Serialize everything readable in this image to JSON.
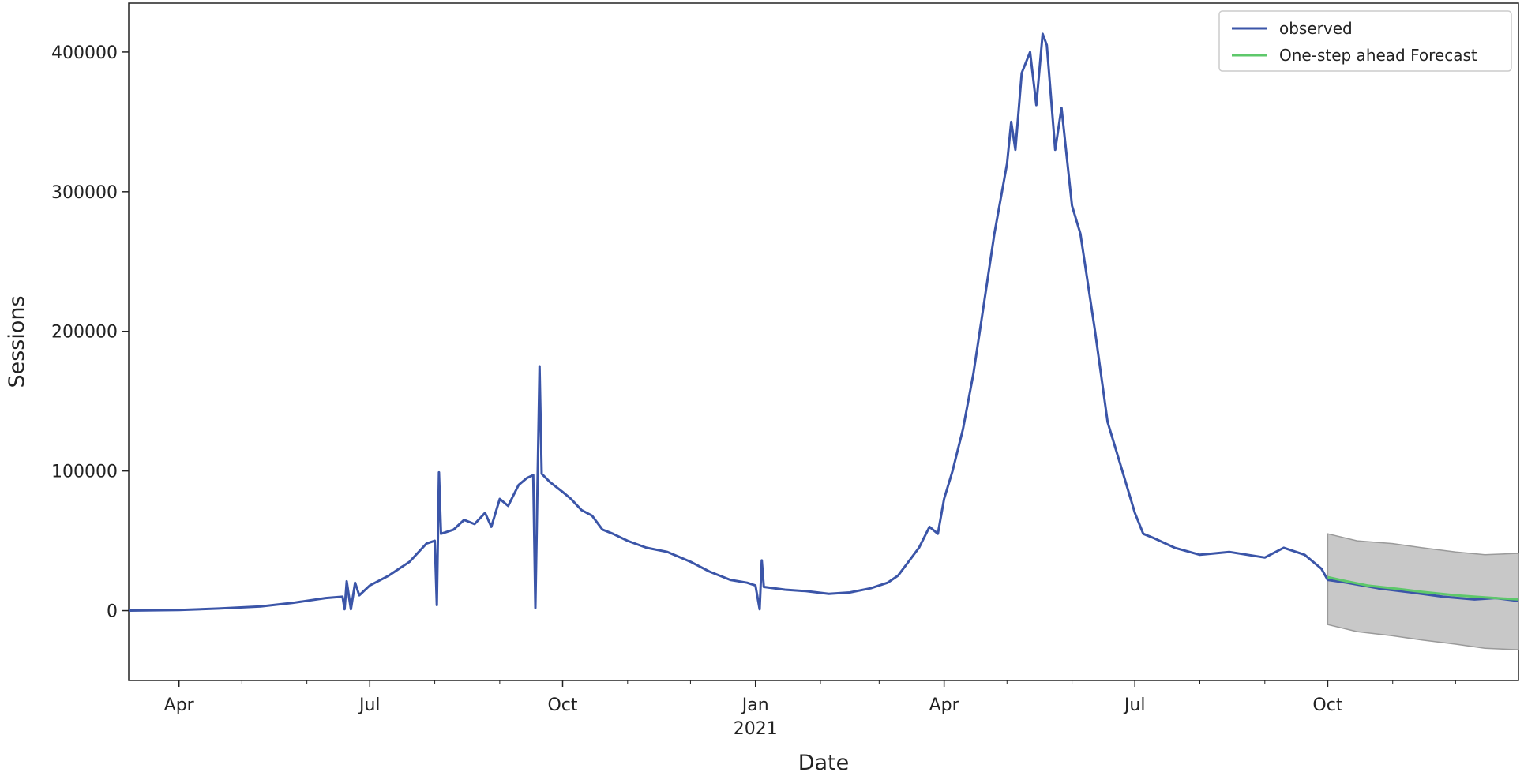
{
  "chart_data": {
    "type": "line",
    "title": "",
    "xlabel": "Date",
    "ylabel": "Sessions",
    "xlim": [
      "2020-03-08",
      "2021-12-31"
    ],
    "ylim": [
      -50000,
      435000
    ],
    "grid": false,
    "legend_position": "top-right",
    "x_ticks": [
      {
        "date": "2020-04-01",
        "label": "Apr"
      },
      {
        "date": "2020-07-01",
        "label": "Jul"
      },
      {
        "date": "2020-10-01",
        "label": "Oct"
      },
      {
        "date": "2021-01-01",
        "label": "Jan",
        "sublabel": "2021"
      },
      {
        "date": "2021-04-01",
        "label": "Apr"
      },
      {
        "date": "2021-07-01",
        "label": "Jul"
      },
      {
        "date": "2021-10-01",
        "label": "Oct"
      }
    ],
    "y_ticks": [
      0,
      100000,
      200000,
      300000,
      400000
    ],
    "series": [
      {
        "name": "observed",
        "color": "#3b55a8",
        "points": [
          [
            "2020-03-08",
            0
          ],
          [
            "2020-04-01",
            500
          ],
          [
            "2020-04-20",
            1500
          ],
          [
            "2020-05-10",
            3000
          ],
          [
            "2020-05-25",
            5500
          ],
          [
            "2020-06-10",
            9000
          ],
          [
            "2020-06-18",
            10000
          ],
          [
            "2020-06-19",
            1000
          ],
          [
            "2020-06-20",
            21000
          ],
          [
            "2020-06-21",
            11000
          ],
          [
            "2020-06-22",
            1000
          ],
          [
            "2020-06-24",
            20000
          ],
          [
            "2020-06-26",
            11000
          ],
          [
            "2020-07-01",
            18000
          ],
          [
            "2020-07-10",
            25000
          ],
          [
            "2020-07-20",
            35000
          ],
          [
            "2020-07-28",
            48000
          ],
          [
            "2020-08-01",
            50000
          ],
          [
            "2020-08-02",
            4000
          ],
          [
            "2020-08-03",
            99000
          ],
          [
            "2020-08-04",
            55000
          ],
          [
            "2020-08-10",
            58000
          ],
          [
            "2020-08-15",
            65000
          ],
          [
            "2020-08-20",
            62000
          ],
          [
            "2020-08-25",
            70000
          ],
          [
            "2020-08-28",
            60000
          ],
          [
            "2020-09-01",
            80000
          ],
          [
            "2020-09-05",
            75000
          ],
          [
            "2020-09-10",
            90000
          ],
          [
            "2020-09-14",
            95000
          ],
          [
            "2020-09-17",
            97000
          ],
          [
            "2020-09-18",
            2000
          ],
          [
            "2020-09-20",
            175000
          ],
          [
            "2020-09-21",
            98000
          ],
          [
            "2020-09-25",
            92000
          ],
          [
            "2020-10-01",
            85000
          ],
          [
            "2020-10-05",
            80000
          ],
          [
            "2020-10-10",
            72000
          ],
          [
            "2020-10-15",
            68000
          ],
          [
            "2020-10-20",
            58000
          ],
          [
            "2020-10-25",
            55000
          ],
          [
            "2020-11-01",
            50000
          ],
          [
            "2020-11-10",
            45000
          ],
          [
            "2020-11-20",
            42000
          ],
          [
            "2020-12-01",
            35000
          ],
          [
            "2020-12-10",
            28000
          ],
          [
            "2020-12-20",
            22000
          ],
          [
            "2020-12-28",
            20000
          ],
          [
            "2021-01-01",
            18000
          ],
          [
            "2021-01-03",
            1000
          ],
          [
            "2021-01-04",
            36000
          ],
          [
            "2021-01-05",
            17000
          ],
          [
            "2021-01-15",
            15000
          ],
          [
            "2021-01-25",
            14000
          ],
          [
            "2021-02-05",
            12000
          ],
          [
            "2021-02-15",
            13000
          ],
          [
            "2021-02-25",
            16000
          ],
          [
            "2021-03-05",
            20000
          ],
          [
            "2021-03-10",
            25000
          ],
          [
            "2021-03-15",
            35000
          ],
          [
            "2021-03-20",
            45000
          ],
          [
            "2021-03-25",
            60000
          ],
          [
            "2021-03-29",
            55000
          ],
          [
            "2021-04-01",
            80000
          ],
          [
            "2021-04-05",
            100000
          ],
          [
            "2021-04-10",
            130000
          ],
          [
            "2021-04-15",
            170000
          ],
          [
            "2021-04-20",
            220000
          ],
          [
            "2021-04-25",
            270000
          ],
          [
            "2021-05-01",
            320000
          ],
          [
            "2021-05-03",
            350000
          ],
          [
            "2021-05-05",
            330000
          ],
          [
            "2021-05-08",
            385000
          ],
          [
            "2021-05-12",
            400000
          ],
          [
            "2021-05-15",
            362000
          ],
          [
            "2021-05-18",
            413000
          ],
          [
            "2021-05-20",
            405000
          ],
          [
            "2021-05-24",
            330000
          ],
          [
            "2021-05-27",
            360000
          ],
          [
            "2021-06-01",
            290000
          ],
          [
            "2021-06-05",
            270000
          ],
          [
            "2021-06-10",
            220000
          ],
          [
            "2021-06-12",
            200000
          ],
          [
            "2021-06-18",
            135000
          ],
          [
            "2021-06-25",
            100000
          ],
          [
            "2021-07-01",
            70000
          ],
          [
            "2021-07-05",
            55000
          ],
          [
            "2021-07-10",
            52000
          ],
          [
            "2021-07-20",
            45000
          ],
          [
            "2021-08-01",
            40000
          ],
          [
            "2021-08-15",
            42000
          ],
          [
            "2021-09-01",
            38000
          ],
          [
            "2021-09-10",
            45000
          ],
          [
            "2021-09-20",
            40000
          ],
          [
            "2021-09-28",
            30000
          ],
          [
            "2021-10-01",
            22000
          ],
          [
            "2021-10-10",
            20000
          ],
          [
            "2021-10-25",
            16000
          ],
          [
            "2021-11-10",
            13000
          ],
          [
            "2021-11-25",
            10000
          ],
          [
            "2021-12-10",
            8000
          ],
          [
            "2021-12-20",
            9000
          ],
          [
            "2021-12-31",
            7000
          ]
        ]
      },
      {
        "name": "One-step ahead Forecast",
        "color": "#5ec86b",
        "points": [
          [
            "2021-10-01",
            24000
          ],
          [
            "2021-10-10",
            21000
          ],
          [
            "2021-10-20",
            18000
          ],
          [
            "2021-11-01",
            16000
          ],
          [
            "2021-11-15",
            13500
          ],
          [
            "2021-12-01",
            11000
          ],
          [
            "2021-12-15",
            9500
          ],
          [
            "2021-12-31",
            8000
          ]
        ],
        "confidence_band": [
          [
            "2021-10-01",
            -10000,
            55000
          ],
          [
            "2021-10-15",
            -15000,
            50000
          ],
          [
            "2021-11-01",
            -18000,
            48000
          ],
          [
            "2021-11-15",
            -21000,
            45000
          ],
          [
            "2021-12-01",
            -24000,
            42000
          ],
          [
            "2021-12-15",
            -27000,
            40000
          ],
          [
            "2021-12-31",
            -28000,
            41000
          ]
        ]
      }
    ]
  },
  "colors": {
    "band": "#c8c8c8",
    "band_edge": "#9a9a9a",
    "axis": "#222222"
  }
}
